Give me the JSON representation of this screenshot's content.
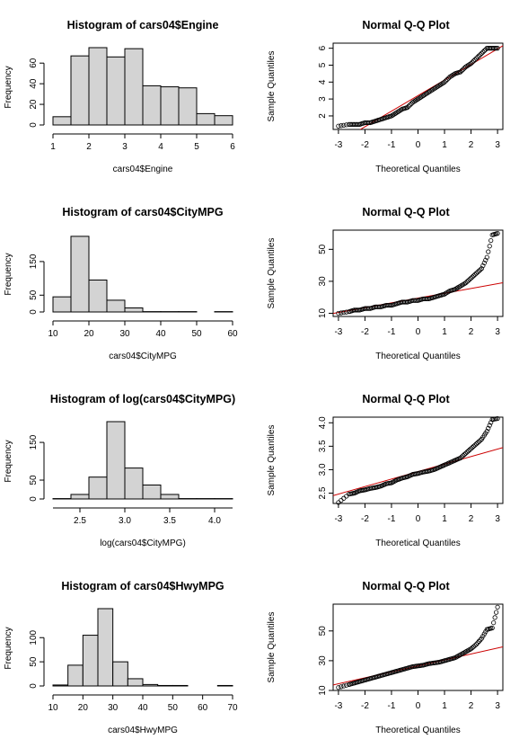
{
  "chart_data": [
    {
      "type": "bar",
      "title": "Histogram of cars04$Engine",
      "xlabel": "cars04$Engine",
      "ylabel": "Frequency",
      "xlim": [
        1,
        6
      ],
      "ylim": [
        0,
        75
      ],
      "x_ticks": [
        "1",
        "2",
        "3",
        "4",
        "5",
        "6"
      ],
      "y_ticks": [
        "0",
        "20",
        "40",
        "60"
      ],
      "bins": [
        [
          1.0,
          1.5
        ],
        [
          1.5,
          2.0
        ],
        [
          2.0,
          2.5
        ],
        [
          2.5,
          3.0
        ],
        [
          3.0,
          3.5
        ],
        [
          3.5,
          4.0
        ],
        [
          4.0,
          4.5
        ],
        [
          4.5,
          5.0
        ],
        [
          5.0,
          5.5
        ],
        [
          5.5,
          6.0
        ]
      ],
      "values": [
        8,
        67,
        75,
        66,
        74,
        38,
        37,
        36,
        11,
        9
      ]
    },
    {
      "type": "scatter",
      "title": "Normal Q-Q Plot",
      "xlabel": "Theoretical Quantiles",
      "ylabel": "Sample Quantiles",
      "xlim": [
        -3.2,
        3.2
      ],
      "ylim": [
        1.2,
        6.3
      ],
      "x_ticks": [
        "-3",
        "-2",
        "-1",
        "0",
        "1",
        "2",
        "3"
      ],
      "y_ticks": [
        "2",
        "3",
        "4",
        "5",
        "6"
      ],
      "reference_line": {
        "intercept": 3.2,
        "slope": 0.92,
        "color": "#cc0000"
      },
      "quantile_points": [
        [
          -3.0,
          1.4
        ],
        [
          -2.6,
          1.5
        ],
        [
          -2.4,
          1.5
        ],
        [
          -2.2,
          1.5
        ],
        [
          -2.0,
          1.6
        ],
        [
          -1.8,
          1.6
        ],
        [
          -1.6,
          1.7
        ],
        [
          -1.4,
          1.8
        ],
        [
          -1.2,
          1.9
        ],
        [
          -1.0,
          2.0
        ],
        [
          -0.8,
          2.2
        ],
        [
          -0.6,
          2.4
        ],
        [
          -0.4,
          2.5
        ],
        [
          -0.2,
          2.8
        ],
        [
          0.0,
          3.0
        ],
        [
          0.2,
          3.2
        ],
        [
          0.4,
          3.4
        ],
        [
          0.6,
          3.6
        ],
        [
          0.8,
          3.8
        ],
        [
          1.0,
          4.0
        ],
        [
          1.2,
          4.3
        ],
        [
          1.4,
          4.5
        ],
        [
          1.6,
          4.6
        ],
        [
          1.8,
          4.9
        ],
        [
          2.0,
          5.1
        ],
        [
          2.2,
          5.4
        ],
        [
          2.4,
          5.7
        ],
        [
          2.6,
          6.0
        ],
        [
          2.8,
          6.0
        ],
        [
          3.0,
          6.0
        ]
      ]
    },
    {
      "type": "bar",
      "title": "Histogram of cars04$CityMPG",
      "xlabel": "cars04$CityMPG",
      "ylabel": "Frequency",
      "xlim": [
        10,
        60
      ],
      "ylim": [
        0,
        230
      ],
      "x_ticks": [
        "10",
        "20",
        "30",
        "40",
        "50",
        "60"
      ],
      "y_ticks": [
        "0",
        "50",
        "150"
      ],
      "bins": [
        [
          10,
          15
        ],
        [
          15,
          20
        ],
        [
          20,
          25
        ],
        [
          25,
          30
        ],
        [
          30,
          35
        ],
        [
          35,
          40
        ],
        [
          40,
          45
        ],
        [
          45,
          50
        ],
        [
          50,
          55
        ],
        [
          55,
          60
        ]
      ],
      "values": [
        45,
        225,
        95,
        35,
        12,
        1,
        1,
        1,
        0,
        1
      ]
    },
    {
      "type": "scatter",
      "title": "Normal Q-Q Plot",
      "xlabel": "Theoretical Quantiles",
      "ylabel": "Sample Quantiles",
      "xlim": [
        -3.2,
        3.2
      ],
      "ylim": [
        8,
        62
      ],
      "x_ticks": [
        "-3",
        "-2",
        "-1",
        "0",
        "1",
        "2",
        "3"
      ],
      "y_ticks": [
        "10",
        "30",
        "50"
      ],
      "reference_line": {
        "intercept": 19.5,
        "slope": 3.0,
        "color": "#cc0000"
      },
      "quantile_points": [
        [
          -3.0,
          10
        ],
        [
          -2.6,
          11
        ],
        [
          -2.4,
          12
        ],
        [
          -2.2,
          12
        ],
        [
          -2.0,
          13
        ],
        [
          -1.8,
          13
        ],
        [
          -1.6,
          14
        ],
        [
          -1.4,
          14
        ],
        [
          -1.2,
          15
        ],
        [
          -1.0,
          15
        ],
        [
          -0.8,
          16
        ],
        [
          -0.6,
          17
        ],
        [
          -0.4,
          17
        ],
        [
          -0.2,
          18
        ],
        [
          0.0,
          18
        ],
        [
          0.2,
          19
        ],
        [
          0.4,
          19
        ],
        [
          0.6,
          20
        ],
        [
          0.8,
          21
        ],
        [
          1.0,
          22
        ],
        [
          1.2,
          24
        ],
        [
          1.4,
          25
        ],
        [
          1.6,
          27
        ],
        [
          1.8,
          29
        ],
        [
          2.0,
          32
        ],
        [
          2.2,
          35
        ],
        [
          2.4,
          38
        ],
        [
          2.6,
          45
        ],
        [
          2.8,
          59
        ],
        [
          3.0,
          60
        ]
      ]
    },
    {
      "type": "bar",
      "title": "Histogram of log(cars04$CityMPG)",
      "xlabel": "log(cars04$CityMPG)",
      "ylabel": "Frequency",
      "xlim": [
        2.2,
        4.2
      ],
      "ylim": [
        0,
        205
      ],
      "x_ticks": [
        "2.5",
        "3.0",
        "3.5",
        "4.0"
      ],
      "y_ticks": [
        "0",
        "50",
        "150"
      ],
      "bins": [
        [
          2.2,
          2.4
        ],
        [
          2.4,
          2.6
        ],
        [
          2.6,
          2.8
        ],
        [
          2.8,
          3.0
        ],
        [
          3.0,
          3.2
        ],
        [
          3.2,
          3.4
        ],
        [
          3.4,
          3.6
        ],
        [
          3.6,
          3.8
        ],
        [
          3.8,
          4.0
        ],
        [
          4.0,
          4.2
        ]
      ],
      "values": [
        1,
        12,
        58,
        205,
        82,
        37,
        12,
        1,
        1,
        1
      ]
    },
    {
      "type": "scatter",
      "title": "Normal Q-Q Plot",
      "xlabel": "Theoretical Quantiles",
      "ylabel": "Sample Quantiles",
      "xlim": [
        -3.2,
        3.2
      ],
      "ylim": [
        2.28,
        4.12
      ],
      "x_ticks": [
        "-3",
        "-2",
        "-1",
        "0",
        "1",
        "2",
        "3"
      ],
      "y_ticks": [
        "2.5",
        "3.0",
        "3.5",
        "4.0"
      ],
      "reference_line": {
        "intercept": 2.96,
        "slope": 0.16,
        "color": "#cc0000"
      },
      "quantile_points": [
        [
          -3.0,
          2.3
        ],
        [
          -2.6,
          2.48
        ],
        [
          -2.4,
          2.5
        ],
        [
          -2.2,
          2.55
        ],
        [
          -2.0,
          2.57
        ],
        [
          -1.8,
          2.6
        ],
        [
          -1.6,
          2.62
        ],
        [
          -1.4,
          2.65
        ],
        [
          -1.2,
          2.7
        ],
        [
          -1.0,
          2.72
        ],
        [
          -0.8,
          2.78
        ],
        [
          -0.6,
          2.82
        ],
        [
          -0.4,
          2.85
        ],
        [
          -0.2,
          2.9
        ],
        [
          0.0,
          2.92
        ],
        [
          0.2,
          2.95
        ],
        [
          0.4,
          2.97
        ],
        [
          0.6,
          3.0
        ],
        [
          0.8,
          3.05
        ],
        [
          1.0,
          3.1
        ],
        [
          1.2,
          3.15
        ],
        [
          1.4,
          3.2
        ],
        [
          1.6,
          3.25
        ],
        [
          1.8,
          3.35
        ],
        [
          2.0,
          3.45
        ],
        [
          2.2,
          3.55
        ],
        [
          2.4,
          3.65
        ],
        [
          2.6,
          3.82
        ],
        [
          2.8,
          4.07
        ],
        [
          3.0,
          4.09
        ]
      ]
    },
    {
      "type": "bar",
      "title": "Histogram of cars04$HwyMPG",
      "xlabel": "cars04$HwyMPG",
      "ylabel": "Frequency",
      "xlim": [
        10,
        70
      ],
      "ylim": [
        0,
        160
      ],
      "x_ticks": [
        "10",
        "20",
        "30",
        "40",
        "50",
        "60",
        "70"
      ],
      "y_ticks": [
        "0",
        "50",
        "100"
      ],
      "bins": [
        [
          10,
          15
        ],
        [
          15,
          20
        ],
        [
          20,
          25
        ],
        [
          25,
          30
        ],
        [
          30,
          35
        ],
        [
          35,
          40
        ],
        [
          40,
          45
        ],
        [
          45,
          50
        ],
        [
          50,
          55
        ],
        [
          55,
          60
        ],
        [
          60,
          65
        ],
        [
          65,
          70
        ]
      ],
      "values": [
        2,
        43,
        105,
        160,
        50,
        15,
        3,
        1,
        1,
        0,
        0,
        1
      ]
    },
    {
      "type": "scatter",
      "title": "Normal Q-Q Plot",
      "xlabel": "Theoretical Quantiles",
      "ylabel": "Sample Quantiles",
      "xlim": [
        -3.2,
        3.2
      ],
      "ylim": [
        10,
        68
      ],
      "x_ticks": [
        "-3",
        "-2",
        "-1",
        "0",
        "1",
        "2",
        "3"
      ],
      "y_ticks": [
        "10",
        "30",
        "50"
      ],
      "reference_line": {
        "intercept": 26.5,
        "slope": 4.0,
        "color": "#cc0000"
      },
      "quantile_points": [
        [
          -3.0,
          12
        ],
        [
          -2.6,
          14
        ],
        [
          -2.4,
          15
        ],
        [
          -2.2,
          16
        ],
        [
          -2.0,
          17
        ],
        [
          -1.8,
          18
        ],
        [
          -1.6,
          19
        ],
        [
          -1.4,
          20
        ],
        [
          -1.2,
          21
        ],
        [
          -1.0,
          22
        ],
        [
          -0.8,
          23
        ],
        [
          -0.6,
          24
        ],
        [
          -0.4,
          25
        ],
        [
          -0.2,
          26
        ],
        [
          0.0,
          26.5
        ],
        [
          0.2,
          27
        ],
        [
          0.4,
          28
        ],
        [
          0.6,
          28.5
        ],
        [
          0.8,
          29
        ],
        [
          1.0,
          30
        ],
        [
          1.2,
          31
        ],
        [
          1.4,
          32
        ],
        [
          1.6,
          34
        ],
        [
          1.8,
          36
        ],
        [
          2.0,
          38
        ],
        [
          2.2,
          41
        ],
        [
          2.4,
          45
        ],
        [
          2.6,
          51
        ],
        [
          2.8,
          52
        ],
        [
          3.0,
          66
        ]
      ]
    }
  ]
}
